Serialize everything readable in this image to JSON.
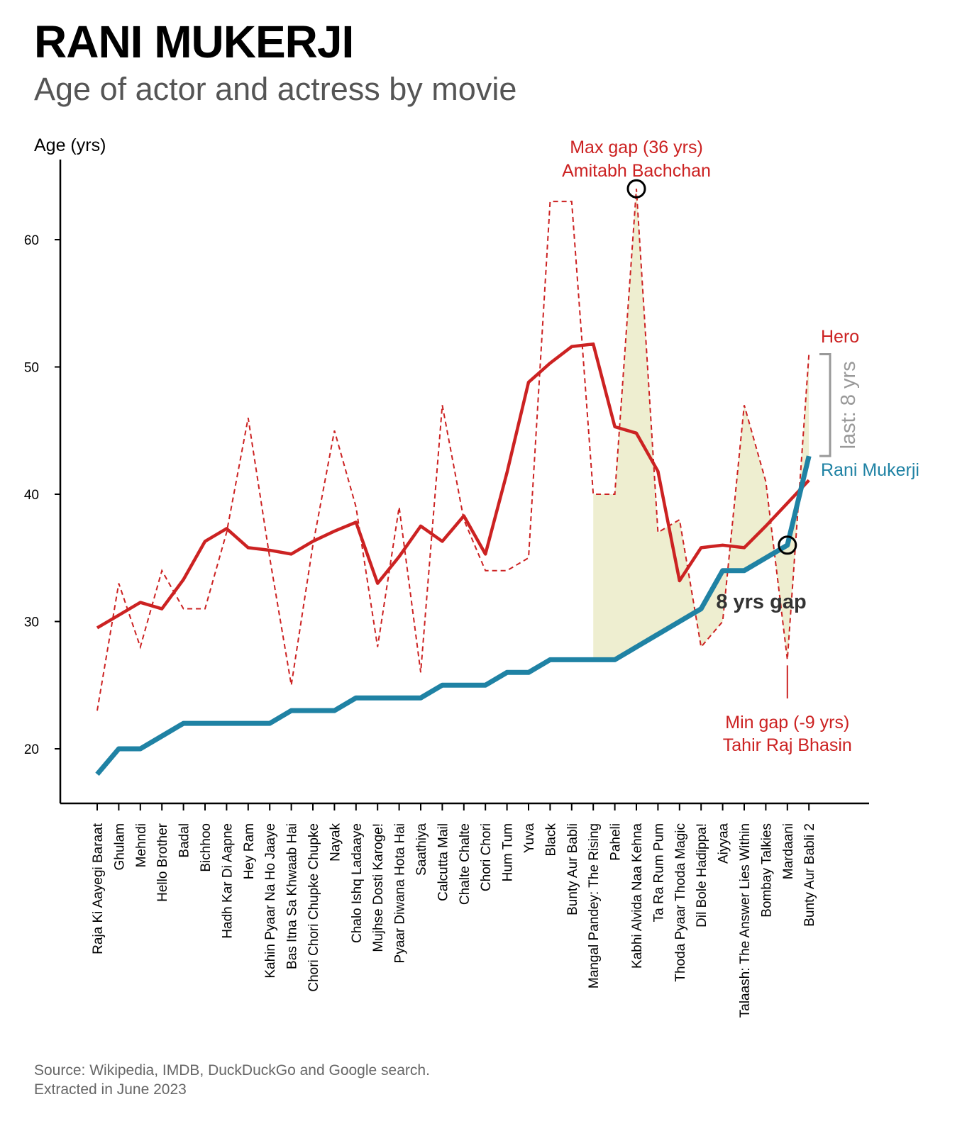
{
  "title": "RANI MUKERJI",
  "subtitle": "Age of actor and actress by movie",
  "source_lines": [
    "Source: Wikipedia, IMDB, DuckDuckGo and Google search.",
    "Extracted in June 2023"
  ],
  "colors": {
    "hero": "#cc2222",
    "actress": "#1f82a4",
    "fill": "#eeeed0",
    "bracket": "#999999",
    "dark": "#333333"
  },
  "chart_data": {
    "type": "line",
    "ylabel": "Age (yrs)",
    "ylim": [
      16,
      66
    ],
    "yticks": [
      20,
      30,
      40,
      50,
      60
    ],
    "categories": [
      "Raja Ki Aayegi Baraat",
      "Ghulam",
      "Mehndi",
      "Hello Brother",
      "Badal",
      "Bichhoo",
      "Hadh Kar Di Aapne",
      "Hey Ram",
      "Kahin Pyaar Na Ho Jaaye",
      "Bas Itna Sa Khwaab Hai",
      "Chori Chori Chupke Chupke",
      "Nayak",
      "Chalo Ishq Ladaaye",
      "Mujhse Dosti Karoge!",
      "Pyaar Diwana Hota Hai",
      "Saathiya",
      "Calcutta Mail",
      "Chalte Chalte",
      "Chori Chori",
      "Hum Tum",
      "Yuva",
      "Black",
      "Bunty Aur Babli",
      "Mangal Pandey: The Rising",
      "Paheli",
      "Kabhi Alvida Naa Kehna",
      "Ta Ra Rum Pum",
      "Thoda Pyaar Thoda Magic",
      "Dil Bole Hadippa!",
      "Aiyyaa",
      "Talaash: The Answer Lies Within",
      "Bombay Talkies",
      "Mardaani",
      "Bunty Aur Babli 2"
    ],
    "series": [
      {
        "name": "Hero",
        "style": "dashed",
        "values": [
          23,
          33,
          28,
          34,
          31,
          31,
          37,
          46,
          35,
          25,
          36,
          45,
          39,
          28,
          39,
          26,
          47,
          38,
          34,
          34,
          35,
          63,
          63,
          40,
          40,
          64,
          37,
          38,
          28,
          30,
          47,
          41,
          27,
          51
        ]
      },
      {
        "name": "Hero",
        "style": "smoothed",
        "values": [
          29.5,
          30.5,
          31.5,
          31,
          33.3,
          36.3,
          37.3,
          35.8,
          35.6,
          35.3,
          36.3,
          37.1,
          37.8,
          33,
          35.1,
          37.5,
          36.3,
          38.3,
          35.3,
          41.7,
          48.8,
          50.3,
          51.6,
          51.8,
          45.3,
          44.8,
          41.8,
          33.2,
          35.8,
          36,
          35.8,
          37.5,
          39.3,
          41.1
        ]
      },
      {
        "name": "Rani Mukerji",
        "style": "solid",
        "values": [
          18,
          20,
          20,
          21,
          22,
          22,
          22,
          22,
          22,
          23,
          23,
          23,
          24,
          24,
          24,
          24,
          25,
          25,
          25,
          26,
          26,
          27,
          27,
          27,
          27,
          28,
          29,
          30,
          31,
          34,
          34,
          35,
          36,
          43
        ]
      }
    ],
    "annotations": {
      "max_gap": [
        "Max gap (36 yrs)",
        "Amitabh Bachchan"
      ],
      "min_gap": [
        "Min gap (-9 yrs)",
        "Tahir Raj Bhasin"
      ],
      "gap_label": "8 yrs gap",
      "last_label": "last: 8 yrs",
      "hero_label": "Hero",
      "actress_label": "Rani Mukerji"
    }
  }
}
